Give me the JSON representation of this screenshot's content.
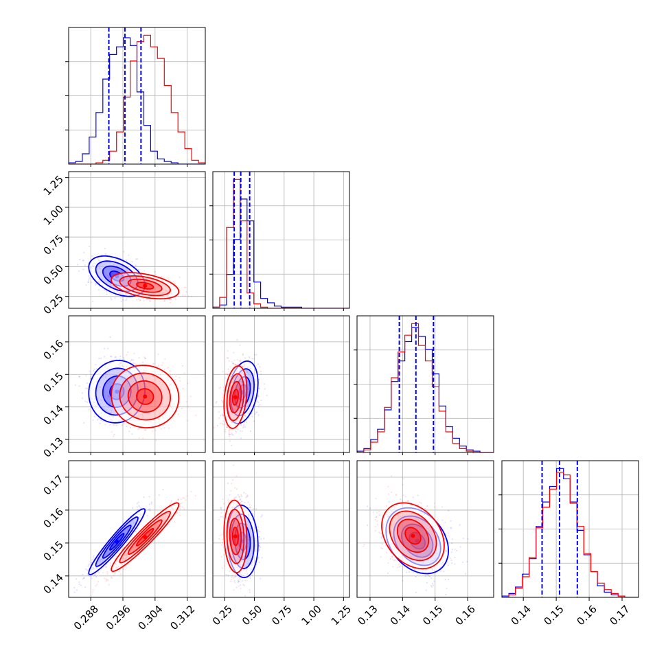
{
  "chart_data": {
    "type": "corner",
    "title": "",
    "grid": true,
    "legend": "none",
    "series": [
      {
        "color": "#0000ff"
      },
      {
        "color": "#ff0000"
      }
    ],
    "parameters": [
      {
        "index": 0,
        "label": "",
        "range": [
          0.2825,
          0.3165
        ],
        "ticks": [
          0.288,
          0.296,
          0.304,
          0.312
        ],
        "tick_labels": [
          "0.288",
          "0.296",
          "0.304",
          "0.312"
        ],
        "quantiles": [
          0.2925,
          0.2965,
          0.3005
        ],
        "hist_bins": [
          0.2825,
          0.2842,
          0.2859,
          0.2876,
          0.2893,
          0.291,
          0.2927,
          0.2944,
          0.2961,
          0.2978,
          0.2995,
          0.3012,
          0.3029,
          0.3046,
          0.3063,
          0.308,
          0.3097,
          0.3114,
          0.3131,
          0.3148,
          0.3165
        ],
        "hist_blue": [
          1,
          2,
          8,
          21,
          40,
          66,
          85,
          91,
          98,
          92,
          56,
          30,
          10,
          4,
          2,
          1,
          0,
          0,
          0,
          0
        ],
        "hist_red": [
          0,
          0,
          0,
          0,
          1,
          3,
          10,
          25,
          52,
          80,
          95,
          100,
          91,
          82,
          61,
          40,
          25,
          12,
          3,
          1
        ]
      },
      {
        "index": 1,
        "label": "",
        "range": [
          0.15,
          1.3
        ],
        "ticks": [
          0.25,
          0.5,
          0.75,
          1.0,
          1.25
        ],
        "tick_labels": [
          "0.25",
          "0.50",
          "0.75",
          "1.00",
          "1.25"
        ],
        "quantiles": [
          0.33,
          0.385,
          0.46
        ],
        "hist_bins": [
          0.15,
          0.2075,
          0.265,
          0.3225,
          0.38,
          0.4375,
          0.495,
          0.5525,
          0.61,
          0.6675,
          0.725,
          0.7825,
          0.84,
          0.8975,
          0.955,
          1.0125,
          1.07,
          1.1275,
          1.185,
          1.2425,
          1.3
        ],
        "hist_blue": [
          1,
          3,
          31,
          63,
          100,
          80,
          24,
          9,
          5,
          2,
          1,
          1,
          1,
          0,
          0,
          0,
          0,
          0,
          0,
          0
        ],
        "hist_red": [
          1,
          10,
          74,
          118,
          80,
          14,
          4,
          1,
          0,
          0,
          0,
          0,
          0,
          0,
          0,
          0,
          0,
          0,
          0,
          0
        ]
      },
      {
        "index": 2,
        "label": "",
        "range": [
          0.126,
          0.168
        ],
        "ticks": [
          0.13,
          0.14,
          0.15,
          0.16
        ],
        "tick_labels": [
          "0.13",
          "0.14",
          "0.15",
          "0.16"
        ],
        "quantiles": [
          0.139,
          0.1441,
          0.1495
        ],
        "hist_bins": [
          0.126,
          0.1281,
          0.1302,
          0.1323,
          0.1344,
          0.1365,
          0.1386,
          0.1407,
          0.1428,
          0.1449,
          0.147,
          0.1491,
          0.1512,
          0.1533,
          0.1554,
          0.1575,
          0.1596,
          0.1617,
          0.1638,
          0.1659,
          0.168
        ],
        "hist_blue": [
          1,
          3,
          10,
          18,
          33,
          55,
          71,
          86,
          97,
          90,
          80,
          61,
          36,
          20,
          11,
          5,
          2,
          1,
          0,
          0
        ],
        "hist_red": [
          0,
          2,
          8,
          16,
          35,
          58,
          78,
          91,
          100,
          83,
          71,
          51,
          32,
          16,
          7,
          3,
          1,
          0,
          0,
          0
        ]
      },
      {
        "index": 3,
        "label": "",
        "range": [
          0.1335,
          0.175
        ],
        "ticks": [
          0.14,
          0.15,
          0.16,
          0.17
        ],
        "tick_labels": [
          "0.14",
          "0.15",
          "0.16",
          "0.17"
        ],
        "quantiles": [
          0.1457,
          0.151,
          0.1564
        ],
        "hist_bins": [
          0.1335,
          0.1356,
          0.1376,
          0.1397,
          0.1418,
          0.1439,
          0.1459,
          0.148,
          0.1501,
          0.1522,
          0.1542,
          0.1563,
          0.1584,
          0.1605,
          0.1625,
          0.1646,
          0.1667,
          0.1688,
          0.1708,
          0.1729,
          0.175
        ],
        "hist_blue": [
          1,
          3,
          8,
          18,
          30,
          55,
          74,
          86,
          100,
          92,
          74,
          52,
          33,
          20,
          9,
          4,
          2,
          1,
          0,
          0
        ],
        "hist_red": [
          0,
          2,
          7,
          16,
          31,
          54,
          70,
          84,
          97,
          95,
          73,
          55,
          34,
          20,
          11,
          6,
          3,
          1,
          0,
          0
        ]
      }
    ],
    "contour_panels": [
      {
        "row": 1,
        "col": 0,
        "blue": {
          "center": [
            0.2945,
            0.42
          ],
          "sigma": [
            0.0035,
            0.085
          ],
          "rho": -0.45
        },
        "red": {
          "center": [
            0.3015,
            0.34
          ],
          "sigma": [
            0.0042,
            0.055
          ],
          "rho": -0.45
        }
      },
      {
        "row": 2,
        "col": 0,
        "blue": {
          "center": [
            0.2945,
            0.1447
          ],
          "sigma": [
            0.0035,
            0.0048
          ],
          "rho": 0.05
        },
        "red": {
          "center": [
            0.3015,
            0.1432
          ],
          "sigma": [
            0.0042,
            0.0048
          ],
          "rho": -0.05
        }
      },
      {
        "row": 2,
        "col": 1,
        "blue": {
          "center": [
            0.4,
            0.1445
          ],
          "sigma": [
            0.065,
            0.0048
          ],
          "rho": 0.3
        },
        "red": {
          "center": [
            0.34,
            0.143
          ],
          "sigma": [
            0.048,
            0.0048
          ],
          "rho": 0.25
        }
      },
      {
        "row": 3,
        "col": 0,
        "blue": {
          "center": [
            0.2945,
            0.1504
          ],
          "sigma": [
            0.0035,
            0.005
          ],
          "rho": 0.95
        },
        "red": {
          "center": [
            0.3015,
            0.1518
          ],
          "sigma": [
            0.0042,
            0.0052
          ],
          "rho": 0.95
        }
      },
      {
        "row": 3,
        "col": 1,
        "blue": {
          "center": [
            0.4,
            0.1505
          ],
          "sigma": [
            0.065,
            0.0055
          ],
          "rho": -0.1
        },
        "red": {
          "center": [
            0.34,
            0.152
          ],
          "sigma": [
            0.048,
            0.0055
          ],
          "rho": -0.1
        }
      },
      {
        "row": 3,
        "col": 2,
        "blue": {
          "center": [
            0.1445,
            0.1507
          ],
          "sigma": [
            0.0048,
            0.005
          ],
          "rho": -0.3
        },
        "red": {
          "center": [
            0.1432,
            0.1522
          ],
          "sigma": [
            0.0048,
            0.005
          ],
          "rho": -0.3
        }
      }
    ],
    "contour_sigma_levels": [
      0.5,
      1.0,
      1.5,
      2.0
    ]
  }
}
